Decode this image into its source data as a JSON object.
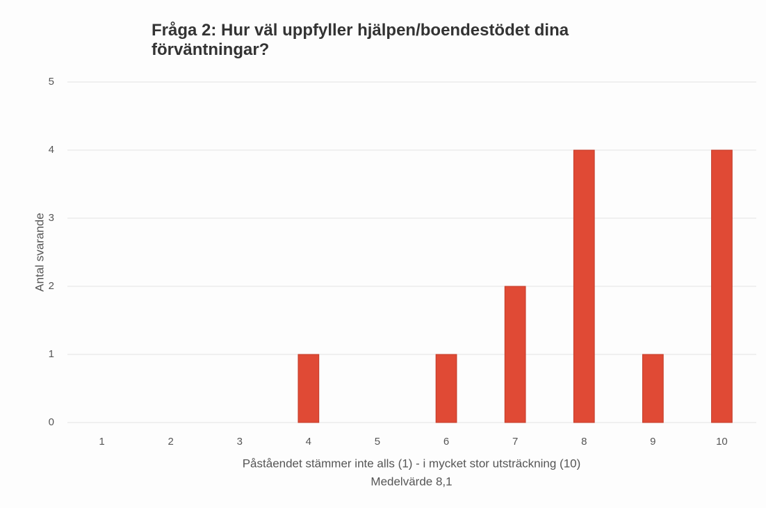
{
  "chart_data": {
    "type": "bar",
    "title": "Fråga 2: Hur väl uppfyller hjälpen/boendestödet dina förväntningar?",
    "x_label": "Påståendet stämmer inte alls (1) - i mycket stor utsträckning (10)",
    "annotation": "Medelvärde 8,1",
    "y_label": "Antal svarande",
    "categories": [
      "1",
      "2",
      "3",
      "4",
      "5",
      "6",
      "7",
      "8",
      "9",
      "10"
    ],
    "values": [
      0,
      0,
      0,
      1,
      0,
      1,
      2,
      4,
      1,
      4
    ],
    "color": "#e04a35",
    "ylim": [
      0,
      5
    ],
    "yticks": [
      0,
      1,
      2,
      3,
      4,
      5
    ],
    "grid": true
  }
}
